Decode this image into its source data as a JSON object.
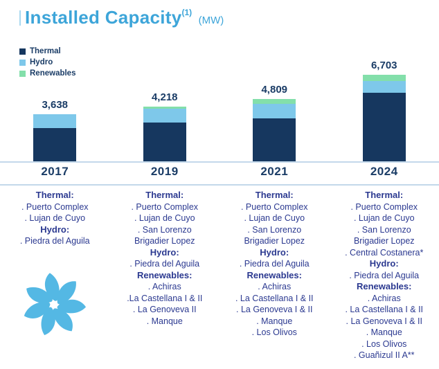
{
  "page": {
    "title": "Installed Capacity",
    "title_superscript": "(1)",
    "title_unit": "(MW)"
  },
  "colors": {
    "title_blue": "#3DA5D9",
    "navy_text": "#1A3C66",
    "list_text": "#2B3990",
    "axis_line": "#C3D8EA",
    "logo_blue": "#54B8E4"
  },
  "legend": [
    {
      "label": "Thermal",
      "color": "#16375F"
    },
    {
      "label": "Hydro",
      "color": "#7EC8EA"
    },
    {
      "label": "Renewables",
      "color": "#83DFAA"
    }
  ],
  "chart_data": {
    "type": "bar",
    "stacked": true,
    "title": "Installed Capacity (MW)",
    "unit": "MW",
    "categories": [
      "2017",
      "2019",
      "2021",
      "2024"
    ],
    "totals": [
      3638,
      4218,
      4809,
      6703
    ],
    "total_labels": [
      "3,638",
      "4,218",
      "4,809",
      "6,703"
    ],
    "series": [
      {
        "name": "Thermal",
        "color": "#16375F",
        "values": [
          2550,
          3000,
          3300,
          5300
        ]
      },
      {
        "name": "Hydro",
        "color": "#7EC8EA",
        "values": [
          1088,
          1060,
          1110,
          900
        ]
      },
      {
        "name": "Renewables",
        "color": "#83DFAA",
        "values": [
          0,
          158,
          399,
          503
        ]
      }
    ],
    "ylim": [
      0,
      6703
    ],
    "grid": false,
    "legend_position": "top-left",
    "value_labels_position": "above-bars",
    "note": "Segment values estimated from bar proportions; only stack totals are labeled on the chart."
  },
  "columns": [
    {
      "year": "2017",
      "list": [
        {
          "type": "heading",
          "text": "Thermal:"
        },
        {
          "type": "item",
          "text": ". Puerto Complex"
        },
        {
          "type": "item",
          "text": ". Lujan de Cuyo"
        },
        {
          "type": "heading",
          "text": "Hydro:"
        },
        {
          "type": "item",
          "text": ". Piedra del Aguila"
        }
      ]
    },
    {
      "year": "2019",
      "list": [
        {
          "type": "heading",
          "text": "Thermal:"
        },
        {
          "type": "item",
          "text": ". Puerto Complex"
        },
        {
          "type": "item",
          "text": ". Lujan de Cuyo"
        },
        {
          "type": "item",
          "text": ". San Lorenzo"
        },
        {
          "type": "item",
          "text": "Brigadier Lopez"
        },
        {
          "type": "heading",
          "text": "Hydro:"
        },
        {
          "type": "item",
          "text": ". Piedra del Aguila"
        },
        {
          "type": "heading",
          "text": "Renewables:"
        },
        {
          "type": "item",
          "text": ". Achiras"
        },
        {
          "type": "item",
          "text": ".La Castellana I & II"
        },
        {
          "type": "item",
          "text": ". La Genoveva II"
        },
        {
          "type": "item",
          "text": ". Manque"
        }
      ]
    },
    {
      "year": "2021",
      "list": [
        {
          "type": "heading",
          "text": "Thermal:"
        },
        {
          "type": "item",
          "text": ". Puerto Complex"
        },
        {
          "type": "item",
          "text": ". Lujan de Cuyo"
        },
        {
          "type": "item",
          "text": ". San Lorenzo"
        },
        {
          "type": "item",
          "text": "Brigadier Lopez"
        },
        {
          "type": "heading",
          "text": "Hydro:"
        },
        {
          "type": "item",
          "text": ". Piedra del Aguila"
        },
        {
          "type": "heading",
          "text": "Renewables:"
        },
        {
          "type": "item",
          "text": ". Achiras"
        },
        {
          "type": "item",
          "text": ". La Castellana I & II"
        },
        {
          "type": "item",
          "text": ". La Genoveva I & II"
        },
        {
          "type": "item",
          "text": ". Manque"
        },
        {
          "type": "item",
          "text": ". Los Olivos"
        }
      ]
    },
    {
      "year": "2024",
      "list": [
        {
          "type": "heading",
          "text": "Thermal:"
        },
        {
          "type": "item",
          "text": ". Puerto Complex"
        },
        {
          "type": "item",
          "text": ". Lujan de Cuyo"
        },
        {
          "type": "item",
          "text": ". San Lorenzo"
        },
        {
          "type": "item",
          "text": "Brigadier Lopez"
        },
        {
          "type": "item",
          "text": ". Central Costanera*"
        },
        {
          "type": "heading",
          "text": "Hydro:"
        },
        {
          "type": "item",
          "text": ". Piedra del Aguila"
        },
        {
          "type": "heading",
          "text": "Renewables:"
        },
        {
          "type": "item",
          "text": ". Achiras"
        },
        {
          "type": "item",
          "text": ". La Castellana I & II"
        },
        {
          "type": "item",
          "text": ". La Genoveva I & II"
        },
        {
          "type": "item",
          "text": ". Manque"
        },
        {
          "type": "item",
          "text": ". Los Olivos"
        },
        {
          "type": "item",
          "text": ". Guañizul II A**"
        }
      ]
    }
  ]
}
